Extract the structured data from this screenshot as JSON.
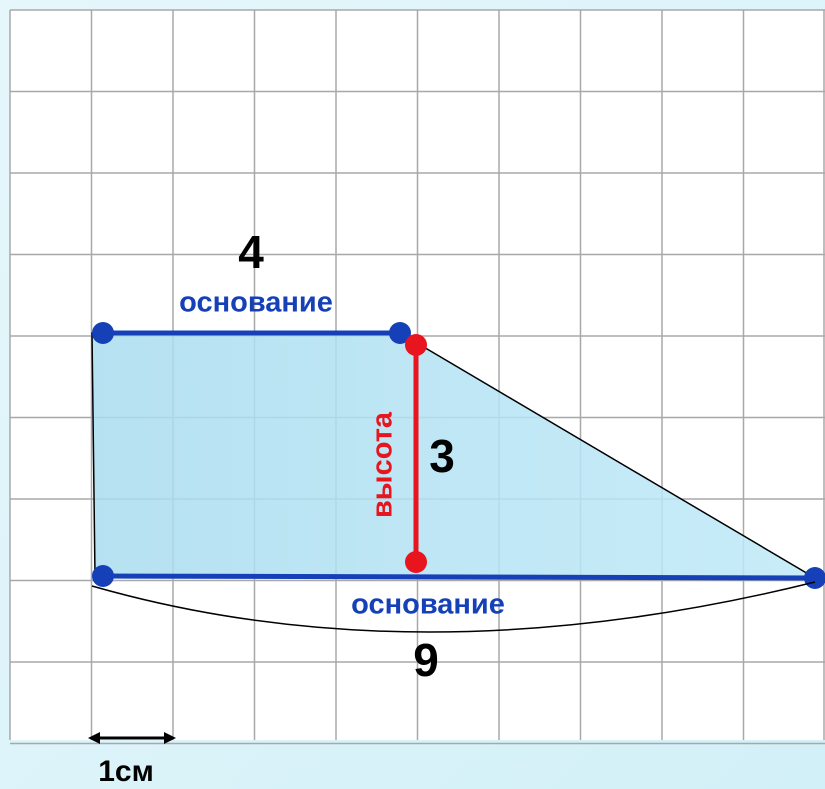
{
  "top_base": {
    "length": "4",
    "label": "основание"
  },
  "height": {
    "label": "высота",
    "length": "3"
  },
  "bottom_base": {
    "label": "основание",
    "length": "9"
  },
  "scale": "1см"
}
